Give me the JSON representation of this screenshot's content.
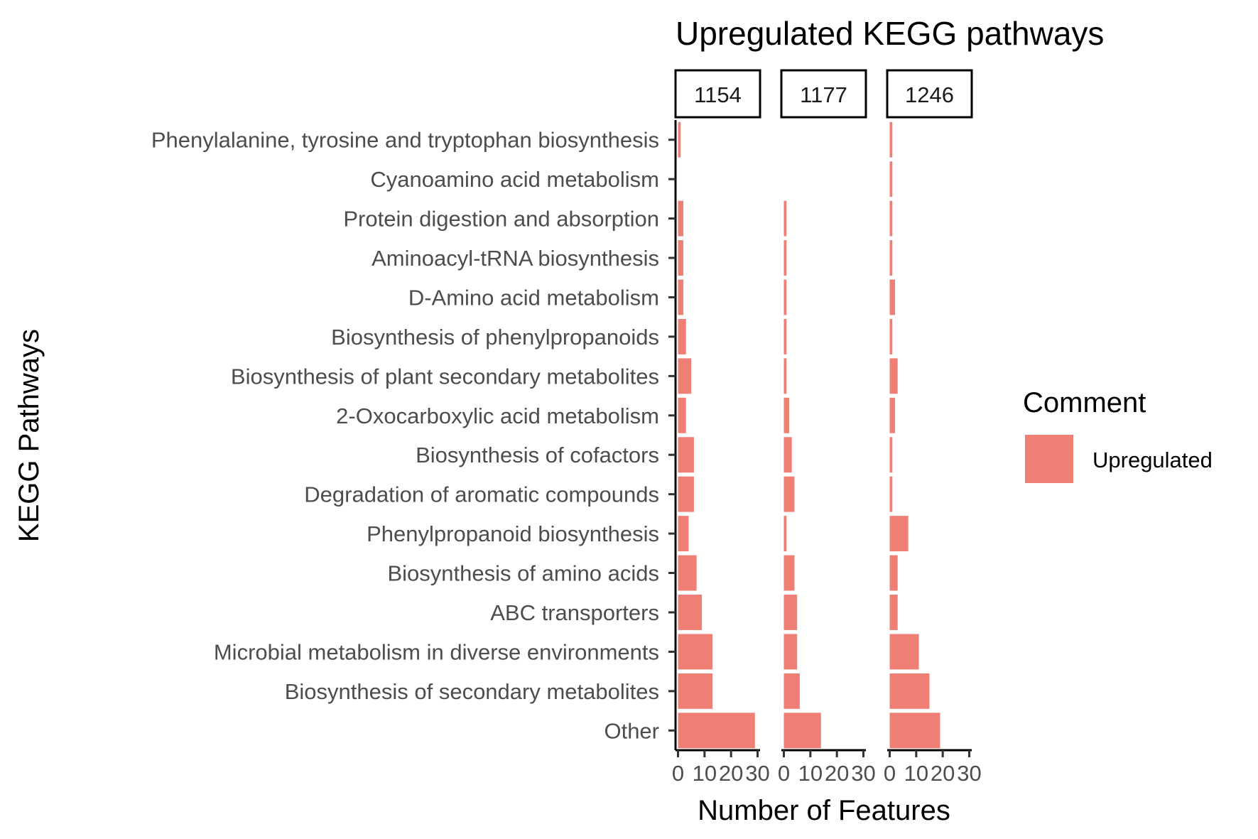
{
  "chart_data": {
    "type": "bar",
    "orientation": "horizontal",
    "title": "Upregulated KEGG pathways",
    "xlabel": "Number of Features",
    "ylabel": "KEGG Pathways",
    "xlim": [
      0,
      30
    ],
    "xticks": [
      0,
      10,
      20,
      30
    ],
    "xtick_labels": [
      "0",
      "10",
      "20",
      "30"
    ],
    "grid": false,
    "categories": [
      "Phenylalanine, tyrosine and tryptophan biosynthesis",
      "Cyanoamino acid metabolism",
      "Protein digestion and absorption",
      "Aminoacyl-tRNA biosynthesis",
      "D-Amino acid metabolism",
      "Biosynthesis of phenylpropanoids",
      "Biosynthesis of plant secondary metabolites",
      "2-Oxocarboxylic acid metabolism",
      "Biosynthesis of cofactors",
      "Degradation of aromatic compounds",
      "Phenylpropanoid biosynthesis",
      "Biosynthesis of amino acids",
      "ABC transporters",
      "Microbial metabolism in diverse environments",
      "Biosynthesis of secondary metabolites",
      "Other"
    ],
    "facets": [
      {
        "label": "1154",
        "values": [
          1,
          0,
          2,
          2,
          2,
          3,
          5,
          3,
          6,
          6,
          4,
          7,
          9,
          13,
          13,
          29
        ]
      },
      {
        "label": "1177",
        "values": [
          0,
          0,
          1,
          1,
          1,
          1,
          1,
          2,
          3,
          4,
          1,
          4,
          5,
          5,
          6,
          14
        ]
      },
      {
        "label": "1246",
        "values": [
          1,
          1,
          1,
          1,
          2,
          1,
          3,
          2,
          1,
          1,
          7,
          3,
          3,
          11,
          15,
          19
        ]
      }
    ],
    "legend": {
      "title": "Comment",
      "entries": [
        "Upregulated"
      ],
      "position": "right"
    },
    "colors": {
      "bar": "#EF7F74",
      "axis": "#000000",
      "text": "#4d4d4d"
    }
  }
}
